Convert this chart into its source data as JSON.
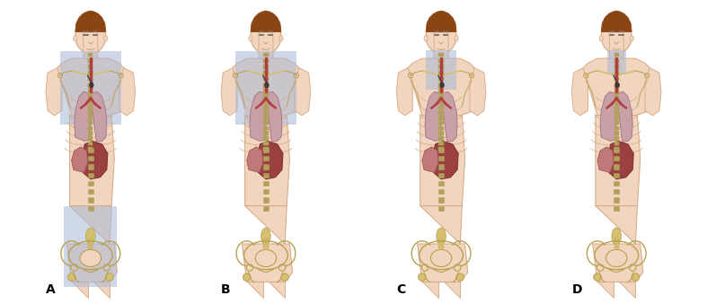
{
  "labels": [
    "A",
    "B",
    "C",
    "D"
  ],
  "label_fontsize": 10,
  "background_color": "#ffffff",
  "fig_width": 7.87,
  "fig_height": 3.39,
  "dpi": 100,
  "blue_field": "#a8b8d8",
  "blue_alpha": 0.55,
  "skin_color": "#f2d5bf",
  "skin_edge": "#d4a882",
  "bone_color": "#d4c070",
  "bone_edge": "#b8a050",
  "spine_color": "#b0a060",
  "lung_fill": "#c8a0a8",
  "lung_edge": "#a07080",
  "mediastinum_fill": "#b04040",
  "mediastinum_edge": "#882020",
  "liver_fill": "#9b4040",
  "liver_edge": "#7a3030",
  "spleen_fill": "#c07878",
  "spleen_edge": "#9a5858",
  "lymph_color": "#404040",
  "hair_color": "#8B4513",
  "mantle_fill": "#8898b8",
  "pelvic_fill": "#8898b8",
  "abdom_fill": "#b08888",
  "abdom_alpha": 0.4
}
